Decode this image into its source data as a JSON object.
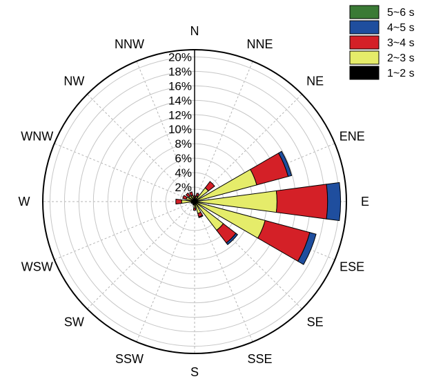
{
  "chart_data": {
    "type": "windrose",
    "directions": [
      "N",
      "NNE",
      "NE",
      "ENE",
      "E",
      "ESE",
      "SE",
      "SSE",
      "S",
      "SSW",
      "SW",
      "WSW",
      "W",
      "WNW",
      "NW",
      "NNW"
    ],
    "bin_angles_deg": [
      0,
      22.5,
      45,
      67.5,
      90,
      112.5,
      135,
      157.5,
      180,
      202.5,
      225,
      247.5,
      270,
      292.5,
      315,
      337.5
    ],
    "radial_ticks": [
      "2%",
      "4%",
      "6%",
      "8%",
      "10%",
      "12%",
      "14%",
      "16%",
      "18%",
      "20%"
    ],
    "radial_max": 21,
    "legend": [
      "5~6 s",
      "4~5 s",
      "3~4 s",
      "2~3 s",
      "1~2 s"
    ],
    "colors": {
      "5~6 s": "#3a7a35",
      "4~5 s": "#1f4e9e",
      "3~4 s": "#d42027",
      "2~3 s": "#e5ec6a",
      "1~2 s": "#000000"
    },
    "series": [
      {
        "name": "1~2 s",
        "values": [
          0.3,
          0.3,
          0.4,
          0.4,
          0.4,
          0.4,
          0.3,
          0.3,
          0.3,
          0.3,
          0.3,
          0.3,
          0.4,
          0.4,
          0.3,
          0.3
        ]
      },
      {
        "name": "2~3 s",
        "values": [
          0.2,
          0.5,
          2.0,
          8.5,
          11.0,
          9.7,
          4.7,
          1.4,
          0.6,
          0.1,
          0.1,
          0.1,
          1.4,
          0.8,
          0.7,
          0.6
        ]
      },
      {
        "name": "3~4 s",
        "values": [
          0.3,
          0.4,
          1.1,
          4.5,
          7.0,
          6.4,
          2.2,
          0.5,
          0.3,
          0.1,
          0.0,
          0.1,
          0.8,
          0.5,
          0.5,
          0.5
        ]
      },
      {
        "name": "4~5 s",
        "values": [
          0.0,
          0.0,
          0.0,
          0.5,
          1.8,
          0.9,
          0.3,
          0.1,
          0.0,
          0.0,
          0.0,
          0.0,
          0.0,
          0.0,
          0.0,
          0.0
        ]
      },
      {
        "name": "5~6 s",
        "values": [
          0,
          0,
          0,
          0,
          0,
          0,
          0,
          0,
          0,
          0,
          0,
          0,
          0,
          0,
          0,
          0
        ]
      }
    ]
  }
}
